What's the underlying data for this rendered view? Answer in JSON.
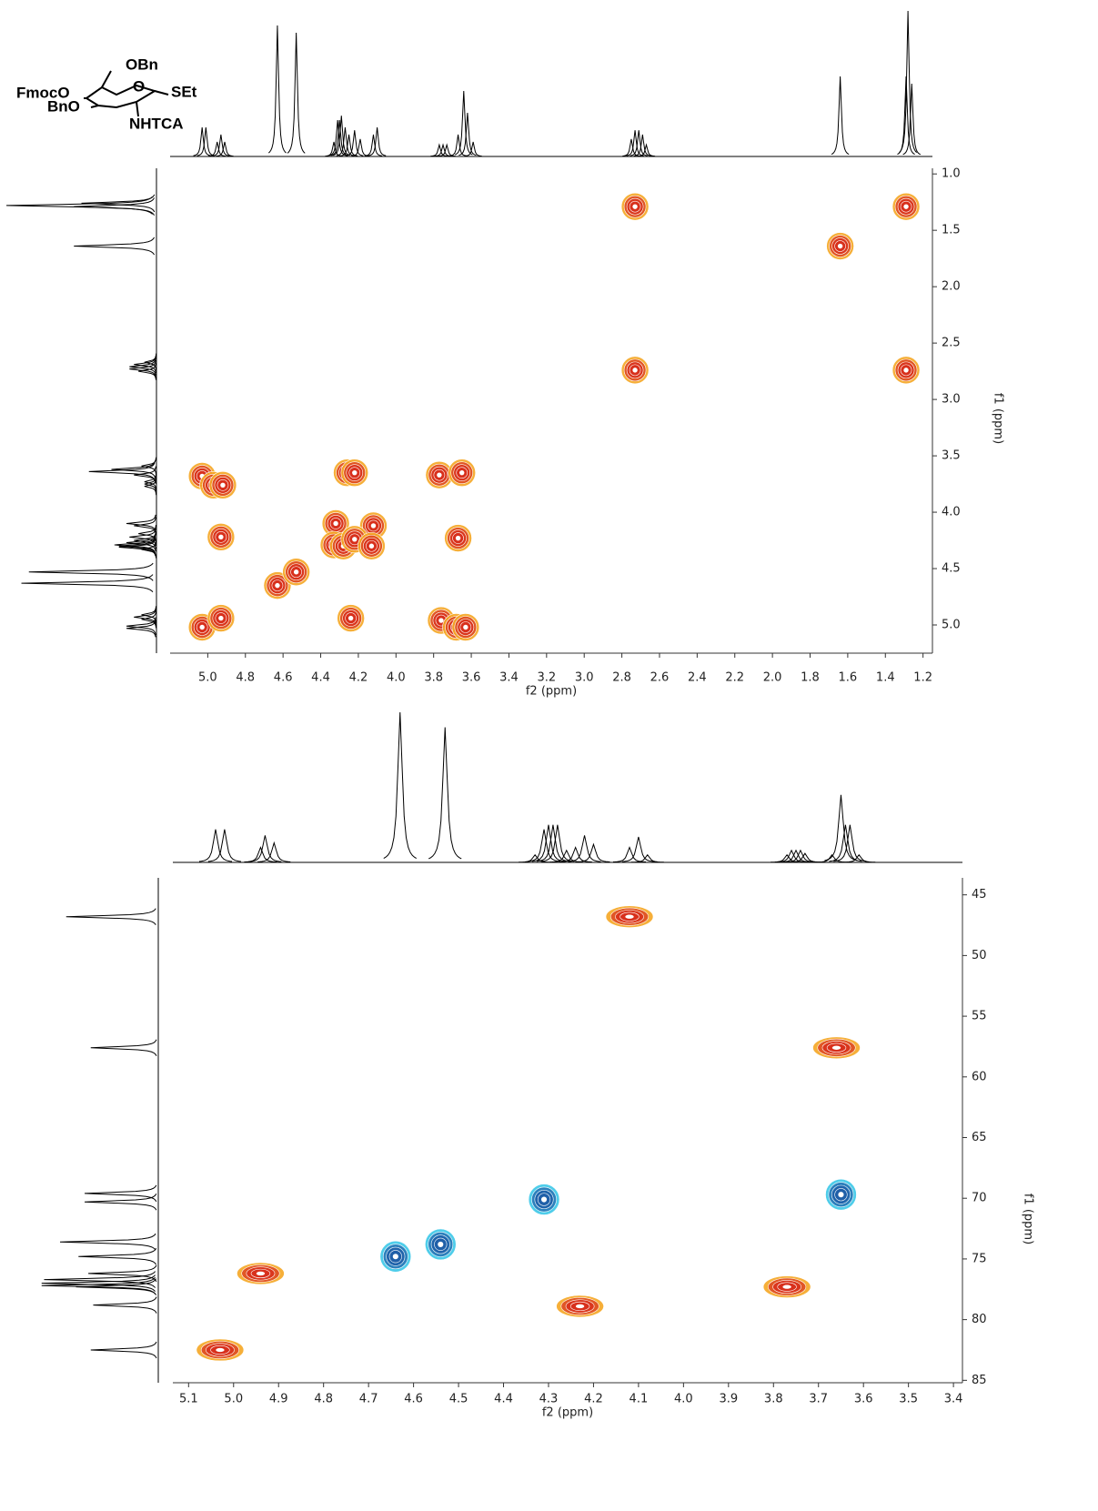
{
  "chart_data": [
    {
      "type": "contour",
      "x_label": "f2 (ppm)",
      "y_label": "f1 (ppm)",
      "annotations": [
        "OBn",
        "O",
        "SEt",
        "FmocO",
        "BnO",
        "NHTCA"
      ],
      "xlim": [
        5.2,
        1.15
      ],
      "ylim": [
        0.95,
        5.25
      ],
      "xticks": [
        {
          "value": 5.0,
          "label": "5.0"
        },
        4.8,
        4.6,
        4.4,
        4.2,
        {
          "value": 4.0,
          "label": "4.0"
        },
        3.8,
        3.6,
        3.4,
        3.2,
        {
          "value": 3.0,
          "label": "3.0"
        },
        2.8,
        2.6,
        2.4,
        2.2,
        {
          "value": 2.0,
          "label": "2.0"
        },
        1.8,
        1.6,
        1.4,
        1.2
      ],
      "yticks": [
        {
          "value": 1.0,
          "label": "1.0"
        },
        1.5,
        {
          "value": 2.0,
          "label": "2.0"
        },
        2.5,
        {
          "value": 3.0,
          "label": "3.0"
        },
        3.5,
        {
          "value": 4.0,
          "label": "4.0"
        },
        4.5,
        {
          "value": 5.0,
          "label": "5.0"
        }
      ],
      "series": [
        {
          "color": "#d8301c",
          "x": [
            2.73,
            1.29,
            1.64,
            2.73,
            1.29,
            5.03,
            4.97,
            4.92,
            4.26,
            4.22,
            3.77,
            3.65,
            4.32,
            4.12,
            4.93,
            4.33,
            4.28,
            4.22,
            4.13,
            3.67,
            4.63,
            4.53,
            5.03,
            4.93,
            4.24,
            3.76,
            3.68,
            3.63
          ],
          "values": [
            1.29,
            1.29,
            1.64,
            2.74,
            2.74,
            3.68,
            3.76,
            3.76,
            3.65,
            3.65,
            3.67,
            3.65,
            4.1,
            4.12,
            4.22,
            4.29,
            4.3,
            4.24,
            4.3,
            4.23,
            4.65,
            4.53,
            5.02,
            4.94,
            4.94,
            4.96,
            5.02,
            5.02
          ]
        }
      ],
      "f2_projection": {
        "x": [
          5.03,
          5.01,
          4.95,
          4.93,
          4.91,
          4.63,
          4.53,
          4.33,
          4.31,
          4.3,
          4.29,
          4.27,
          4.25,
          4.22,
          4.19,
          4.12,
          4.1,
          3.77,
          3.75,
          3.73,
          3.67,
          3.64,
          3.62,
          3.59,
          2.75,
          2.73,
          2.71,
          2.69,
          2.67,
          1.64,
          1.29,
          1.28,
          1.26
        ],
        "values": [
          20,
          20,
          10,
          15,
          10,
          90,
          85,
          10,
          25,
          25,
          28,
          20,
          15,
          18,
          12,
          15,
          20,
          8,
          8,
          8,
          15,
          45,
          30,
          10,
          12,
          18,
          18,
          15,
          8,
          55,
          55,
          100,
          50
        ]
      }
    },
    {
      "type": "contour",
      "x_label": "f2 (ppm)",
      "y_label": "f1 (ppm)",
      "xlim": [
        5.135,
        3.38
      ],
      "ylim": [
        43.6,
        85.2
      ],
      "xticks": [
        5.1,
        {
          "value": 5.0,
          "label": "5.0"
        },
        4.9,
        4.8,
        4.7,
        4.6,
        4.5,
        4.4,
        4.3,
        4.2,
        4.1,
        {
          "value": 4.0,
          "label": "4.0"
        },
        3.9,
        3.8,
        3.7,
        3.6,
        3.5,
        3.4
      ],
      "yticks": [
        45,
        50,
        55,
        60,
        65,
        70,
        75,
        80,
        85
      ],
      "series": [
        {
          "color": "#d8301c",
          "x": [
            4.12,
            3.66,
            4.94,
            3.77,
            4.23,
            5.03
          ],
          "values": [
            46.8,
            57.6,
            76.2,
            77.3,
            78.9,
            82.5
          ]
        },
        {
          "color": "#1f5fa8",
          "x": [
            4.31,
            3.65,
            4.64,
            4.54
          ],
          "values": [
            70.1,
            69.7,
            74.8,
            73.8
          ]
        }
      ],
      "f2_projection": {
        "x": [
          5.04,
          5.02,
          4.94,
          4.93,
          4.91,
          4.63,
          4.53,
          4.33,
          4.31,
          4.3,
          4.29,
          4.28,
          4.26,
          4.24,
          4.22,
          4.2,
          4.12,
          4.1,
          4.08,
          3.77,
          3.76,
          3.75,
          3.74,
          3.73,
          3.67,
          3.65,
          3.64,
          3.63,
          3.61
        ],
        "values": [
          22,
          22,
          10,
          18,
          13,
          100,
          90,
          5,
          22,
          25,
          25,
          25,
          8,
          10,
          18,
          12,
          10,
          17,
          5,
          5,
          8,
          8,
          8,
          6,
          5,
          45,
          25,
          25,
          5
        ]
      },
      "f1_projection": {
        "x": [
          46.8,
          57.6,
          69.6,
          70.3,
          73.6,
          74.8,
          76.2,
          76.7,
          77.0,
          77.2,
          77.3,
          78.8,
          82.5
        ],
        "values": [
          75,
          55,
          60,
          60,
          80,
          65,
          57,
          93,
          95,
          95,
          67,
          53,
          55
        ]
      }
    }
  ]
}
